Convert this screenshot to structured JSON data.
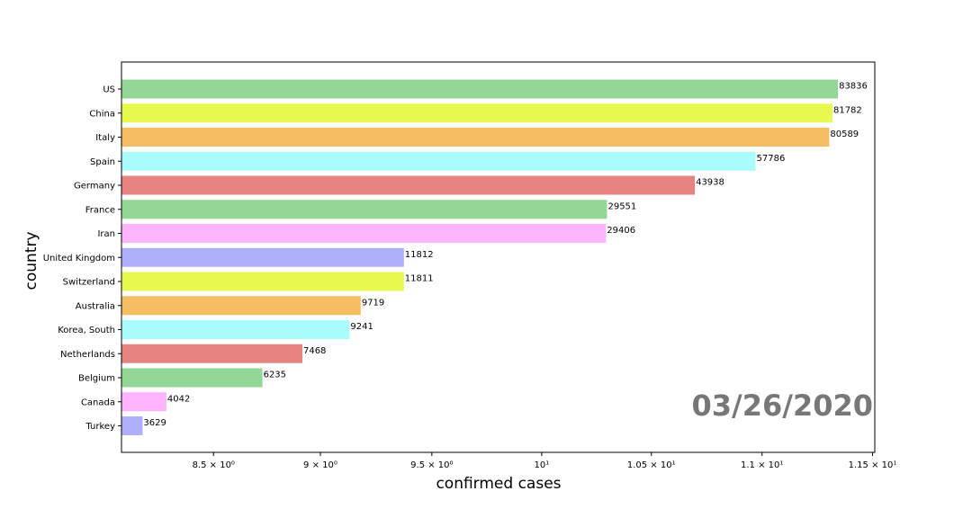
{
  "chart_data": {
    "type": "bar",
    "orientation": "horizontal",
    "categories": [
      "US",
      "China",
      "Italy",
      "Spain",
      "Germany",
      "France",
      "Iran",
      "United Kingdom",
      "Switzerland",
      "Australia",
      "Korea, South",
      "Netherlands",
      "Belgium",
      "Canada",
      "Turkey"
    ],
    "values": [
      83836,
      81782,
      80589,
      57786,
      43938,
      29551,
      29406,
      11812,
      11811,
      9719,
      9241,
      7468,
      6235,
      4042,
      3629
    ],
    "colors": [
      "#93d796",
      "#e8fa4f",
      "#f6bd61",
      "#a8fcfc",
      "#e68482",
      "#93d796",
      "#fdb4fc",
      "#afb0fc",
      "#e8fa4f",
      "#f6bd61",
      "#a8fcfc",
      "#e68482",
      "#93d796",
      "#fdb4fc",
      "#afb0fc"
    ],
    "xscale": "log",
    "xlim": [
      3300,
      99000
    ],
    "xticks": [
      {
        "value": 5000,
        "label": "8.5 × 10⁰"
      },
      {
        "value": 8100,
        "label": "9 × 10⁰"
      },
      {
        "value": 13400,
        "label": "9.5 × 10⁰"
      },
      {
        "value": 22000,
        "label": "10¹"
      },
      {
        "value": 36100,
        "label": "1.05 × 10¹"
      },
      {
        "value": 59500,
        "label": "1.1 × 10¹"
      },
      {
        "value": 98000,
        "label": "1.15 × 10¹"
      }
    ],
    "xlabel": "confirmed cases",
    "ylabel": "country",
    "annotation": "03/26/2020"
  }
}
